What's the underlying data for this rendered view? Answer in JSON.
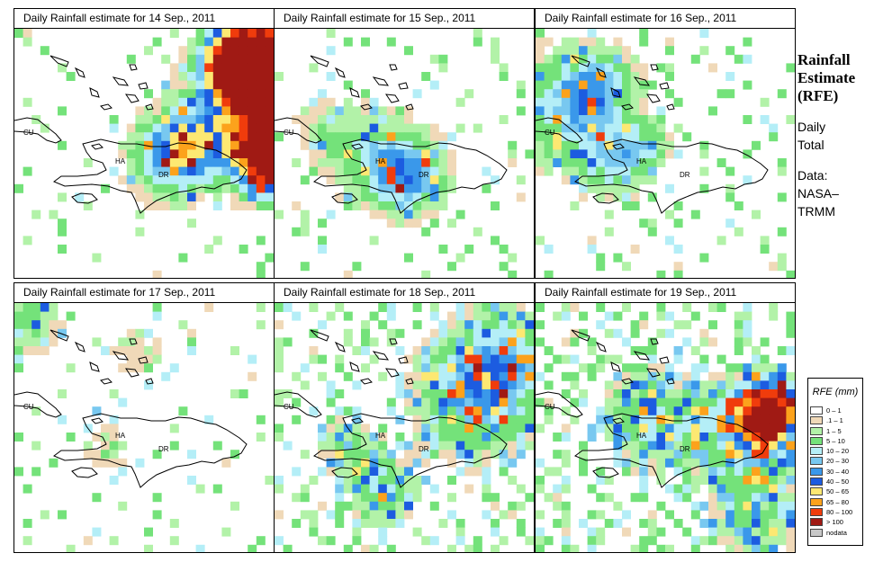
{
  "panels": [
    {
      "title": "Daily Rainfall estimate for  14 Sep., 2011"
    },
    {
      "title": "Daily Rainfall estimate for  15 Sep., 2011"
    },
    {
      "title": "Daily Rainfall estimate for  16 Sep., 2011"
    },
    {
      "title": "Daily Rainfall estimate for  17 Sep., 2011"
    },
    {
      "title": "Daily Rainfall estimate for  18 Sep., 2011"
    },
    {
      "title": "Daily Rainfall estimate for  19 Sep., 2011"
    }
  ],
  "map_labels": {
    "cu": "CU",
    "ha": "HA",
    "dr": "DR"
  },
  "side": {
    "heading_1": "Rainfall",
    "heading_2": "Estimate",
    "heading_3": "(RFE)",
    "line_1": "Daily",
    "line_2": "Total",
    "line_3": "Data:",
    "line_4": "NASA–",
    "line_5": "TRMM"
  },
  "legend": {
    "title": "RFE (mm)",
    "items": [
      {
        "label": "0 – 1",
        "color": "#ffffff"
      },
      {
        "label": ".1 – 1",
        "color": "#f0d9b8"
      },
      {
        "label": "1 – 5",
        "color": "#b2f2a8"
      },
      {
        "label": "5 – 10",
        "color": "#74e27a"
      },
      {
        "label": "10 – 20",
        "color": "#b4eef7"
      },
      {
        "label": "20 – 30",
        "color": "#78c8f0"
      },
      {
        "label": "30 – 40",
        "color": "#3a98ea"
      },
      {
        "label": "40 – 50",
        "color": "#1c5ce0"
      },
      {
        "label": "50 – 65",
        "color": "#fde872"
      },
      {
        "label": "65 – 80",
        "color": "#fca21c"
      },
      {
        "label": "80 – 100",
        "color": "#f03c0c"
      },
      {
        "label": "> 100",
        "color": "#a01a14"
      },
      {
        "label": "nodata",
        "color": "#c8c8c8"
      }
    ]
  }
}
